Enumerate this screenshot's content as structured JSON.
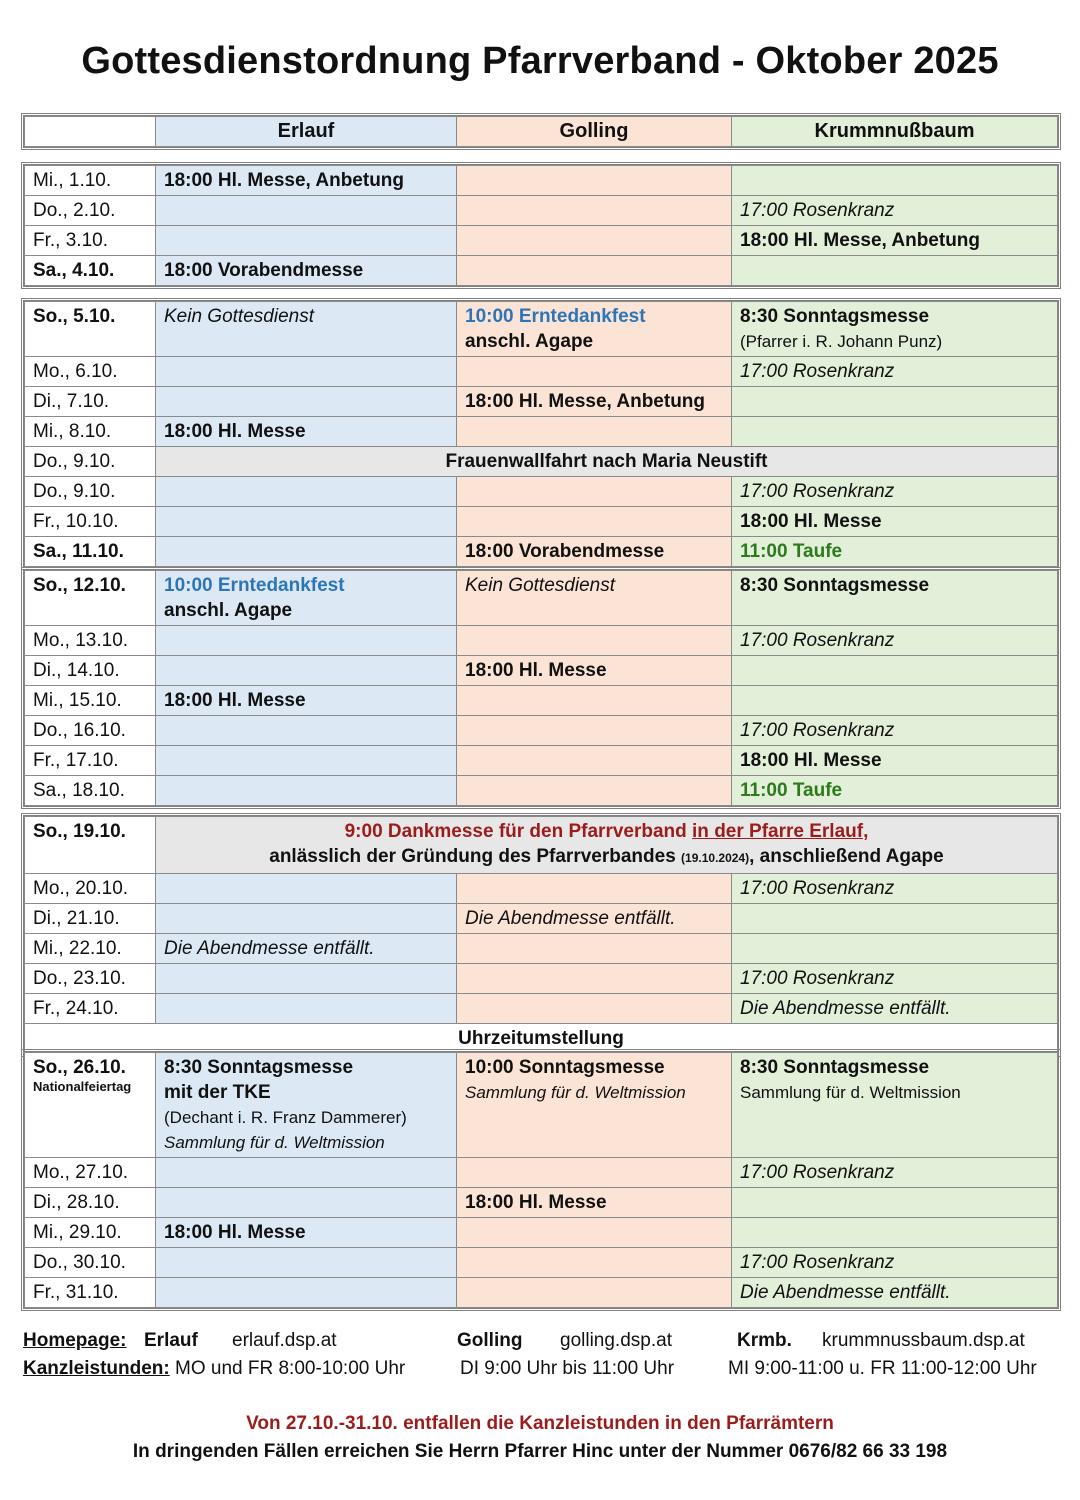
{
  "title": "Gottesdienstordnung Pfarrverband - Oktober 2025",
  "header": [
    "",
    "Erlauf",
    "Golling",
    "Krummnußbaum"
  ],
  "colors": {
    "erlauf": "#dce9f5",
    "golling": "#fbe4d5",
    "krummnussbaum": "#e2efd9",
    "highlight_blue": "#2e75b6",
    "highlight_green": "#2d7a1c",
    "highlight_red": "#9c1c1c"
  },
  "sections": [
    {
      "rows": [
        {
          "date": "Mi., 1.10.",
          "cells": [
            [
              {
                "t": "18:00 Hl. Messe, Anbetung",
                "c": "b"
              }
            ],
            [],
            []
          ]
        },
        {
          "date": "Do., 2.10.",
          "cells": [
            [],
            [],
            [
              {
                "t": "17:00 Rosenkranz",
                "c": "i"
              }
            ]
          ]
        },
        {
          "date": "Fr., 3.10.",
          "cells": [
            [],
            [],
            [
              {
                "t": "18:00 Hl. Messe, Anbetung",
                "c": "b"
              }
            ]
          ]
        },
        {
          "date": "Sa., 4.10.",
          "bold": true,
          "cells": [
            [
              {
                "t": "18:00 Vorabendmesse",
                "c": "b"
              }
            ],
            [],
            []
          ]
        }
      ]
    },
    {
      "rows": [
        {
          "date": "So., 5.10.",
          "bold": true,
          "cells": [
            [
              {
                "t": "Kein Gottesdienst",
                "c": "i"
              }
            ],
            [
              {
                "t": "10:00 Erntedankfest",
                "c": "blue"
              },
              {
                "t": "anschl. Agape",
                "c": "b"
              }
            ],
            [
              {
                "t": "8:30 Sonntagsmesse",
                "c": "b"
              },
              {
                "t": "(Pfarrer i. R. Johann Punz)",
                "c": "s"
              }
            ]
          ]
        },
        {
          "date": "Mo., 6.10.",
          "cells": [
            [],
            [],
            [
              {
                "t": "17:00 Rosenkranz",
                "c": "i"
              }
            ]
          ]
        },
        {
          "date": "Di., 7.10.",
          "cells": [
            [],
            [
              {
                "t": "18:00 Hl. Messe, Anbetung",
                "c": "b"
              }
            ],
            []
          ]
        },
        {
          "date": "Mi., 8.10.",
          "cells": [
            [
              {
                "t": "18:00 Hl. Messe",
                "c": "b"
              }
            ],
            [],
            []
          ]
        },
        {
          "date": "Do., 9.10.",
          "span": [
            [
              {
                "t": "Frauenwallfahrt nach Maria Neustift",
                "c": "b"
              }
            ]
          ]
        },
        {
          "date": "Do., 9.10.",
          "cells": [
            [],
            [],
            [
              {
                "t": "17:00 Rosenkranz",
                "c": "i"
              }
            ]
          ]
        },
        {
          "date": "Fr., 10.10.",
          "cells": [
            [],
            [],
            [
              {
                "t": "18:00 Hl. Messe",
                "c": "b"
              }
            ]
          ]
        },
        {
          "date": "Sa., 11.10.",
          "bold": true,
          "cells": [
            [],
            [
              {
                "t": "18:00 Vorabendmesse",
                "c": "b"
              }
            ],
            [
              {
                "t": "11:00 Taufe",
                "c": "green"
              }
            ]
          ]
        }
      ]
    },
    {
      "rows": [
        {
          "date": "So., 12.10.",
          "bold": true,
          "cells": [
            [
              {
                "t": "10:00 Erntedankfest",
                "c": "blue"
              },
              {
                "t": "anschl. Agape",
                "c": "b"
              }
            ],
            [
              {
                "t": "Kein Gottesdienst",
                "c": "i"
              }
            ],
            [
              {
                "t": "8:30 Sonntagsmesse",
                "c": "b"
              }
            ]
          ]
        },
        {
          "date": "Mo., 13.10.",
          "cells": [
            [],
            [],
            [
              {
                "t": "17:00 Rosenkranz",
                "c": "i"
              }
            ]
          ]
        },
        {
          "date": "Di., 14.10.",
          "cells": [
            [],
            [
              {
                "t": "18:00 Hl. Messe",
                "c": "b"
              }
            ],
            []
          ]
        },
        {
          "date": "Mi., 15.10.",
          "cells": [
            [
              {
                "t": "18:00 Hl. Messe",
                "c": "b"
              }
            ],
            [],
            []
          ]
        },
        {
          "date": "Do., 16.10.",
          "cells": [
            [],
            [],
            [
              {
                "t": "17:00 Rosenkranz",
                "c": "i"
              }
            ]
          ]
        },
        {
          "date": "Fr., 17.10.",
          "cells": [
            [],
            [],
            [
              {
                "t": "18:00 Hl. Messe",
                "c": "b"
              }
            ]
          ]
        },
        {
          "date": "Sa., 18.10.",
          "cells": [
            [],
            [],
            [
              {
                "t": "11:00 Taufe",
                "c": "green"
              }
            ]
          ]
        }
      ]
    },
    {
      "rows": [
        {
          "date": "So., 19.10.",
          "bold": true,
          "span": [
            [
              {
                "t": "9:00 Dankmesse für den Pfarrverband ",
                "c": "red"
              },
              {
                "t": "in der Pfarre Erlauf,",
                "c": "red u"
              }
            ],
            [
              {
                "t": "anlässlich der Gründung des Pfarrverbandes ",
                "c": "b"
              },
              {
                "t": "(19.10.2024)",
                "c": "tiny"
              },
              {
                "t": ", anschließend Agape",
                "c": "b"
              }
            ]
          ]
        },
        {
          "date": "Mo., 20.10.",
          "cells": [
            [],
            [],
            [
              {
                "t": "17:00 Rosenkranz",
                "c": "i"
              }
            ]
          ]
        },
        {
          "date": "Di., 21.10.",
          "cells": [
            [],
            [
              {
                "t": "Die Abendmesse entfällt.",
                "c": "i"
              }
            ],
            []
          ]
        },
        {
          "date": "Mi., 22.10.",
          "cells": [
            [
              {
                "t": "Die Abendmesse entfällt.",
                "c": "i"
              }
            ],
            [],
            []
          ]
        },
        {
          "date": "Do., 23.10.",
          "cells": [
            [],
            [],
            [
              {
                "t": "17:00 Rosenkranz",
                "c": "i"
              }
            ]
          ]
        },
        {
          "date": "Fr., 24.10.",
          "cells": [
            [],
            [],
            [
              {
                "t": "Die Abendmesse entfällt.",
                "c": "i"
              }
            ]
          ]
        },
        {
          "full": "Uhrzeitumstellung"
        }
      ]
    },
    {
      "rows": [
        {
          "date": "So., 26.10.",
          "bold": true,
          "sub": "Nationalfeiertag",
          "cells": [
            [
              {
                "t": "8:30 Sonntagsmesse",
                "c": "b"
              },
              {
                "t": "mit der TKE",
                "c": "b"
              },
              {
                "t": "(Dechant i. R. Franz Dammerer)",
                "c": "s"
              },
              {
                "t": "Sammlung für d. Weltmission",
                "c": "i s"
              }
            ],
            [
              {
                "t": "10:00 Sonntagsmesse",
                "c": "b"
              },
              {
                "t": "Sammlung für d. Weltmission",
                "c": "i s"
              }
            ],
            [
              {
                "t": "8:30 Sonntagsmesse",
                "c": "b"
              },
              {
                "t": "Sammlung für d. Weltmission",
                "c": "s"
              }
            ]
          ]
        },
        {
          "date": "Mo., 27.10.",
          "cells": [
            [],
            [],
            [
              {
                "t": "17:00 Rosenkranz",
                "c": "i"
              }
            ]
          ]
        },
        {
          "date": "Di., 28.10.",
          "cells": [
            [],
            [
              {
                "t": "18:00 Hl. Messe",
                "c": "b"
              }
            ],
            []
          ]
        },
        {
          "date": "Mi., 29.10.",
          "cells": [
            [
              {
                "t": "18:00 Hl. Messe",
                "c": "b"
              }
            ],
            [],
            []
          ]
        },
        {
          "date": "Do., 30.10.",
          "cells": [
            [],
            [],
            [
              {
                "t": "17:00 Rosenkranz",
                "c": "i"
              }
            ]
          ]
        },
        {
          "date": "Fr., 31.10.",
          "cells": [
            [],
            [],
            [
              {
                "t": "Die Abendmesse entfällt.",
                "c": "i"
              }
            ]
          ]
        }
      ]
    }
  ],
  "footer": {
    "homepage_label": "Homepage:",
    "parishes": [
      {
        "name": "Erlauf",
        "url": "erlauf.dsp.at"
      },
      {
        "name": "Golling",
        "url": "golling.dsp.at"
      },
      {
        "name": "Krmb.",
        "url": "krummnussbaum.dsp.at"
      }
    ],
    "office_label": "Kanzleistunden:",
    "office_hours": [
      "MO und FR 8:00-10:00 Uhr",
      "DI 9:00 Uhr bis 11:00 Uhr",
      "MI 9:00-11:00 u. FR 11:00-12:00 Uhr"
    ],
    "notice_red": "Von 27.10.-31.10. entfallen die Kanzleistunden in den Pfarrämtern",
    "notice": "In dringenden Fällen erreichen Sie Herrn Pfarrer Hinc unter der Nummer 0676/82 66 33 198"
  }
}
